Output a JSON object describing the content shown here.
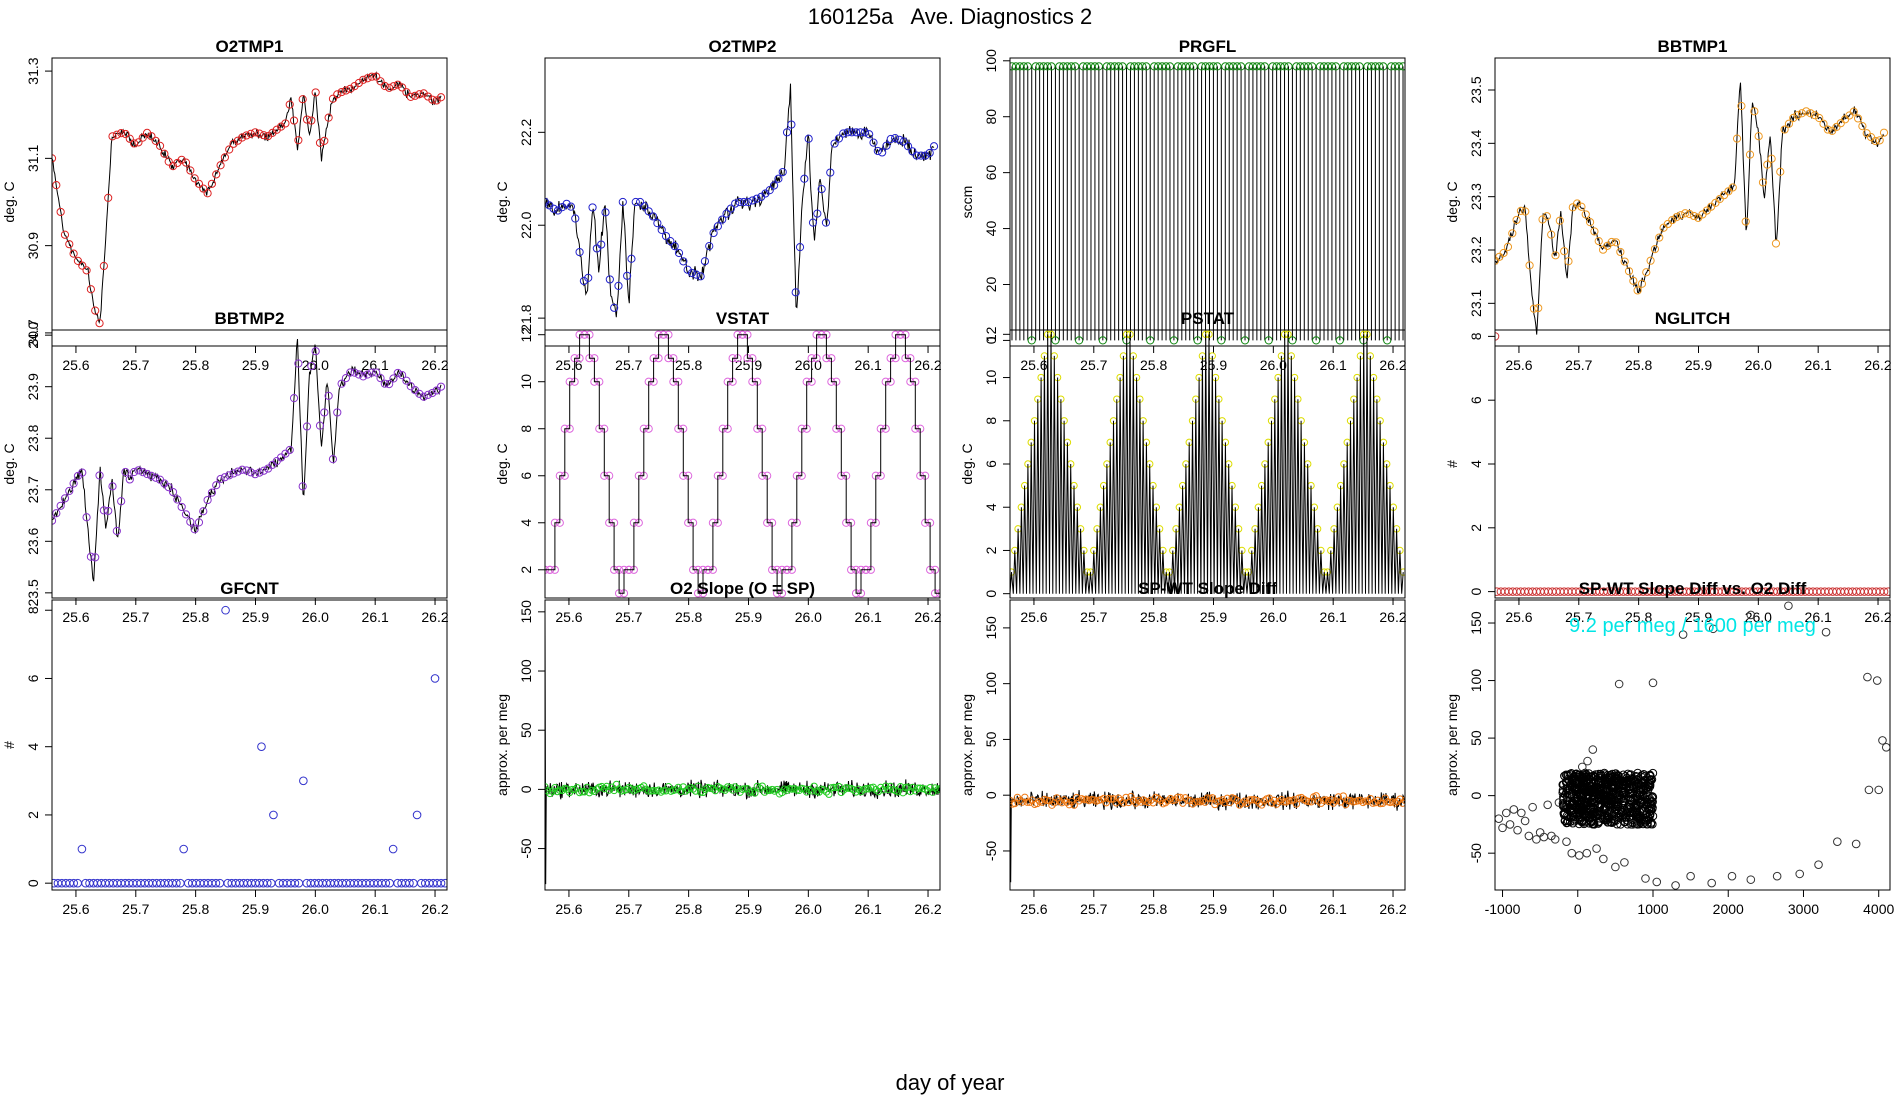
{
  "page": {
    "title": "160125a   Ave. Diagnostics 2",
    "xlabel": "day of year"
  },
  "chart_data": [
    {
      "id": "o2tmp1",
      "type": "line",
      "title": "O2TMP1",
      "ylabel": "deg. C",
      "color": "#dd2222",
      "xlim": [
        25.56,
        26.22
      ],
      "ylim": [
        30.67,
        31.33
      ],
      "xticks": [
        25.6,
        25.7,
        25.8,
        25.9,
        26.0,
        26.1,
        26.2
      ],
      "yticks": [
        30.7,
        30.9,
        31.1,
        31.3
      ],
      "yprec": 1,
      "noise": 0.012,
      "x": [
        25.56,
        25.58,
        25.6,
        25.62,
        25.63,
        25.64,
        25.65,
        25.66,
        25.68,
        25.7,
        25.72,
        25.74,
        25.76,
        25.78,
        25.8,
        25.82,
        25.84,
        25.86,
        25.88,
        25.9,
        25.92,
        25.94,
        25.95,
        25.96,
        25.97,
        25.98,
        25.99,
        26.0,
        26.01,
        26.02,
        26.03,
        26.04,
        26.06,
        26.08,
        26.1,
        26.12,
        26.14,
        26.16,
        26.18,
        26.2,
        26.21
      ],
      "y": [
        31.1,
        30.93,
        30.87,
        30.84,
        30.76,
        30.72,
        30.92,
        31.15,
        31.16,
        31.13,
        31.16,
        31.13,
        31.08,
        31.1,
        31.05,
        31.02,
        31.08,
        31.13,
        31.15,
        31.16,
        31.15,
        31.17,
        31.18,
        31.24,
        31.12,
        31.25,
        31.15,
        31.26,
        31.1,
        31.18,
        31.24,
        31.25,
        31.26,
        31.28,
        31.29,
        31.26,
        31.27,
        31.24,
        31.25,
        31.23,
        31.24
      ]
    },
    {
      "id": "o2tmp2",
      "type": "line",
      "title": "O2TMP2",
      "ylabel": "deg. C",
      "color": "#2222cc",
      "xlim": [
        25.56,
        26.22
      ],
      "ylim": [
        21.74,
        22.36
      ],
      "xticks": [
        25.6,
        25.7,
        25.8,
        25.9,
        26.0,
        26.1,
        26.2
      ],
      "yticks": [
        21.8,
        22.0,
        22.2
      ],
      "yprec": 1,
      "noise": 0.02,
      "x": [
        25.56,
        25.58,
        25.6,
        25.61,
        25.62,
        25.63,
        25.64,
        25.65,
        25.66,
        25.67,
        25.68,
        25.69,
        25.7,
        25.71,
        25.72,
        25.74,
        25.76,
        25.78,
        25.8,
        25.82,
        25.84,
        25.86,
        25.88,
        25.9,
        25.92,
        25.94,
        25.96,
        25.97,
        25.98,
        25.99,
        26.0,
        26.01,
        26.02,
        26.03,
        26.04,
        26.06,
        26.08,
        26.1,
        26.12,
        26.14,
        26.16,
        26.18,
        26.2,
        26.21
      ],
      "y": [
        22.05,
        22.03,
        22.05,
        22.02,
        21.92,
        21.84,
        22.05,
        21.9,
        22.05,
        21.85,
        21.8,
        22.05,
        21.83,
        22.05,
        22.05,
        22.02,
        21.98,
        21.95,
        21.9,
        21.89,
        21.98,
        22.02,
        22.05,
        22.05,
        22.06,
        22.08,
        22.12,
        22.3,
        21.8,
        22.05,
        22.2,
        21.95,
        22.1,
        22.0,
        22.17,
        22.2,
        22.2,
        22.2,
        22.15,
        22.19,
        22.18,
        22.15,
        22.15,
        22.17
      ]
    },
    {
      "id": "prgfl",
      "type": "impulse",
      "title": "PRGFL",
      "ylabel": "sccm",
      "color": "#118811",
      "xlim": [
        25.56,
        26.22
      ],
      "ylim": [
        -2,
        101
      ],
      "xticks": [
        25.6,
        25.7,
        25.8,
        25.9,
        26.0,
        26.1,
        26.2
      ],
      "yticks": [
        0,
        20,
        40,
        60,
        80,
        100
      ],
      "yprec": 0,
      "count": 100,
      "high": 98,
      "low": 0
    },
    {
      "id": "bbtmp1",
      "type": "line",
      "title": "BBTMP1",
      "ylabel": "deg. C",
      "color": "#ee9922",
      "xlim": [
        25.56,
        26.22
      ],
      "ylim": [
        23.02,
        23.56
      ],
      "xticks": [
        25.6,
        25.7,
        25.8,
        25.9,
        26.0,
        26.1,
        26.2
      ],
      "yticks": [
        23.1,
        23.2,
        23.3,
        23.4,
        23.5
      ],
      "yprec": 1,
      "noise": 0.012,
      "x": [
        25.56,
        25.58,
        25.6,
        25.61,
        25.62,
        25.63,
        25.64,
        25.65,
        25.66,
        25.67,
        25.68,
        25.69,
        25.7,
        25.72,
        25.74,
        25.76,
        25.78,
        25.8,
        25.82,
        25.84,
        25.86,
        25.88,
        25.9,
        25.92,
        25.94,
        25.96,
        25.97,
        25.98,
        25.99,
        26.0,
        26.01,
        26.02,
        26.03,
        26.04,
        26.06,
        26.08,
        26.1,
        26.12,
        26.14,
        26.16,
        26.18,
        26.2,
        26.21
      ],
      "y": [
        23.18,
        23.2,
        23.27,
        23.28,
        23.14,
        23.04,
        23.27,
        23.26,
        23.18,
        23.27,
        23.14,
        23.28,
        23.29,
        23.25,
        23.2,
        23.22,
        23.17,
        23.12,
        23.18,
        23.24,
        23.26,
        23.27,
        23.26,
        23.28,
        23.3,
        23.32,
        23.52,
        23.22,
        23.48,
        23.42,
        23.3,
        23.42,
        23.2,
        23.42,
        23.45,
        23.46,
        23.45,
        23.42,
        23.44,
        23.46,
        23.42,
        23.4,
        23.42
      ]
    },
    {
      "id": "bbtmp2",
      "type": "line",
      "title": "BBTMP2",
      "ylabel": "deg. C",
      "color": "#8833cc",
      "xlim": [
        25.56,
        26.22
      ],
      "ylim": [
        23.49,
        24.01
      ],
      "xticks": [
        25.6,
        25.7,
        25.8,
        25.9,
        26.0,
        26.1,
        26.2
      ],
      "yticks": [
        23.5,
        23.6,
        23.7,
        23.8,
        23.9,
        24.0
      ],
      "yprec": 1,
      "noise": 0.012,
      "x": [
        25.56,
        25.58,
        25.6,
        25.61,
        25.62,
        25.63,
        25.64,
        25.65,
        25.66,
        25.67,
        25.68,
        25.69,
        25.7,
        25.72,
        25.74,
        25.76,
        25.78,
        25.8,
        25.82,
        25.84,
        25.86,
        25.88,
        25.9,
        25.92,
        25.94,
        25.96,
        25.97,
        25.98,
        25.99,
        26.0,
        26.01,
        26.02,
        26.03,
        26.04,
        26.06,
        26.08,
        26.1,
        26.12,
        26.14,
        26.16,
        26.18,
        26.2,
        26.21
      ],
      "y": [
        23.64,
        23.68,
        23.72,
        23.74,
        23.62,
        23.52,
        23.74,
        23.62,
        23.72,
        23.6,
        23.74,
        23.72,
        23.74,
        23.73,
        23.72,
        23.7,
        23.66,
        23.62,
        23.68,
        23.72,
        23.73,
        23.74,
        23.73,
        23.74,
        23.76,
        23.78,
        24.0,
        23.67,
        23.92,
        23.98,
        23.78,
        23.92,
        23.75,
        23.9,
        23.93,
        23.92,
        23.93,
        23.9,
        23.93,
        23.9,
        23.88,
        23.89,
        23.9
      ]
    },
    {
      "id": "vstat",
      "type": "step",
      "title": "VSTAT",
      "ylabel": "deg. C",
      "color": "#dd66dd",
      "xlim": [
        25.56,
        26.22
      ],
      "ylim": [
        0.8,
        12.2
      ],
      "xticks": [
        25.6,
        25.7,
        25.8,
        25.9,
        26.0,
        26.1,
        26.2
      ],
      "yticks": [
        2,
        4,
        6,
        8,
        10,
        12
      ],
      "yprec": 0,
      "x_start": 25.56,
      "period": 0.132,
      "cycles": 5
    },
    {
      "id": "pstat",
      "type": "sawtooth",
      "title": "PSTAT",
      "ylabel": "deg. C",
      "color": "#dddd00",
      "xlim": [
        25.56,
        26.22
      ],
      "ylim": [
        -0.2,
        12.2
      ],
      "xticks": [
        25.6,
        25.7,
        25.8,
        25.9,
        26.0,
        26.1,
        26.2
      ],
      "yticks": [
        0,
        2,
        4,
        6,
        8,
        10,
        12
      ],
      "yprec": 0,
      "x_start": 25.56,
      "period": 0.132,
      "cycles": 5
    },
    {
      "id": "nglitch",
      "type": "scatter",
      "title": "NGLITCH",
      "ylabel": "#",
      "color": "#cc3333",
      "xlim": [
        25.56,
        26.22
      ],
      "ylim": [
        -0.2,
        8.2
      ],
      "xticks": [
        25.6,
        25.7,
        25.8,
        25.9,
        26.0,
        26.1,
        26.2
      ],
      "yticks": [
        0,
        2,
        4,
        6,
        8
      ],
      "yprec": 0,
      "first_point": [
        25.56,
        8
      ],
      "baseline": 0,
      "count": 100
    },
    {
      "id": "gfcnt",
      "type": "scatter",
      "title": "GFCNT",
      "ylabel": "#",
      "color": "#3333cc",
      "xlim": [
        25.56,
        26.22
      ],
      "ylim": [
        -0.2,
        8.3
      ],
      "xticks": [
        25.6,
        25.7,
        25.8,
        25.9,
        26.0,
        26.1,
        26.2
      ],
      "yticks": [
        0,
        2,
        4,
        6,
        8
      ],
      "yprec": 0,
      "baseline": 0,
      "count": 100,
      "points": [
        [
          25.61,
          1
        ],
        [
          25.78,
          1
        ],
        [
          25.85,
          8
        ],
        [
          25.91,
          4
        ],
        [
          25.93,
          2
        ],
        [
          25.98,
          3
        ],
        [
          26.13,
          1
        ],
        [
          26.17,
          2
        ],
        [
          26.2,
          6
        ]
      ]
    },
    {
      "id": "o2slope",
      "type": "noise",
      "title": "O2 Slope (O = SP)",
      "ylabel": "approx. per meg",
      "color": "#22cc22",
      "xlim": [
        25.56,
        26.22
      ],
      "ylim": [
        -85,
        160
      ],
      "xticks": [
        25.6,
        25.7,
        25.8,
        25.9,
        26.0,
        26.1,
        26.2
      ],
      "yticks": [
        -50,
        0,
        50,
        100,
        150
      ],
      "yprec": 0,
      "mean": 0,
      "spread": 10,
      "spike": [
        155,
        -80
      ]
    },
    {
      "id": "spwtdiff",
      "type": "noise",
      "title": "SP-WT Slope Diff",
      "ylabel": "approx. per meg",
      "color": "#ee7711",
      "xlim": [
        25.56,
        26.22
      ],
      "ylim": [
        -85,
        175
      ],
      "xticks": [
        25.6,
        25.7,
        25.8,
        25.9,
        26.0,
        26.1,
        26.2
      ],
      "yticks": [
        -50,
        0,
        50,
        100,
        150
      ],
      "yprec": 0,
      "mean": -5,
      "spread": 11,
      "spike": [
        165,
        -78
      ]
    },
    {
      "id": "spwtvso2",
      "type": "scatter",
      "title": "SP-WT Slope Diff vs. O2 Diff",
      "ylabel": "approx. per meg",
      "color": "#333333",
      "xlim": [
        -1100,
        4150
      ],
      "ylim": [
        -82,
        170
      ],
      "xticks": [
        -1000,
        0,
        1000,
        2000,
        3000,
        4000
      ],
      "yticks": [
        -50,
        0,
        50,
        100,
        150
      ],
      "yprec": 0,
      "annotation": "9.2 per meg / 1600 per meg",
      "annotation_color": "#00e5e5",
      "cluster_x": [
        -200,
        1000
      ],
      "cluster_y": [
        -25,
        20
      ],
      "points": [
        [
          -1050,
          -20
        ],
        [
          -1000,
          -28
        ],
        [
          -950,
          -15
        ],
        [
          -900,
          -25
        ],
        [
          -850,
          -12
        ],
        [
          -800,
          -30
        ],
        [
          -750,
          -15
        ],
        [
          -700,
          -22
        ],
        [
          -650,
          -35
        ],
        [
          -600,
          -10
        ],
        [
          -550,
          -38
        ],
        [
          -500,
          -32
        ],
        [
          -450,
          -36
        ],
        [
          -400,
          -8
        ],
        [
          -350,
          -35
        ],
        [
          -300,
          -38
        ],
        [
          -250,
          -6
        ],
        [
          -150,
          -40
        ],
        [
          -80,
          -50
        ],
        [
          20,
          -52
        ],
        [
          120,
          -50
        ],
        [
          250,
          -46
        ],
        [
          340,
          -55
        ],
        [
          500,
          -62
        ],
        [
          620,
          -58
        ],
        [
          730,
          -25
        ],
        [
          900,
          -72
        ],
        [
          1050,
          -75
        ],
        [
          1300,
          -78
        ],
        [
          1500,
          -70
        ],
        [
          1780,
          -76
        ],
        [
          2050,
          -70
        ],
        [
          2300,
          -73
        ],
        [
          2650,
          -70
        ],
        [
          2950,
          -68
        ],
        [
          3200,
          -60
        ],
        [
          3450,
          -40
        ],
        [
          3700,
          -42
        ],
        [
          550,
          97
        ],
        [
          1000,
          98
        ],
        [
          1400,
          140
        ],
        [
          1800,
          145
        ],
        [
          2300,
          157
        ],
        [
          2800,
          165
        ],
        [
          3300,
          142
        ],
        [
          3850,
          103
        ],
        [
          3980,
          100
        ],
        [
          4000,
          5
        ],
        [
          3870,
          5
        ],
        [
          4050,
          48
        ],
        [
          4100,
          42
        ],
        [
          200,
          40
        ],
        [
          130,
          30
        ],
        [
          60,
          25
        ]
      ]
    }
  ]
}
